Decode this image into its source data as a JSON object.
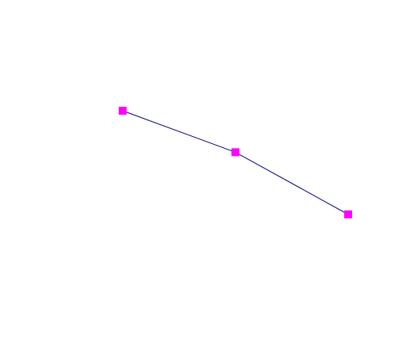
{
  "chart_data": {
    "type": "line",
    "title": "",
    "xlabel": "",
    "ylabel": "",
    "x": [
      1,
      2,
      3
    ],
    "series": [
      {
        "values": [
          1.0,
          0.6,
          0.0
        ],
        "line_color": "#000080",
        "marker_color": "#ff00ff",
        "marker": "square"
      }
    ],
    "axes_visible": false,
    "grid": false,
    "legend": false
  }
}
